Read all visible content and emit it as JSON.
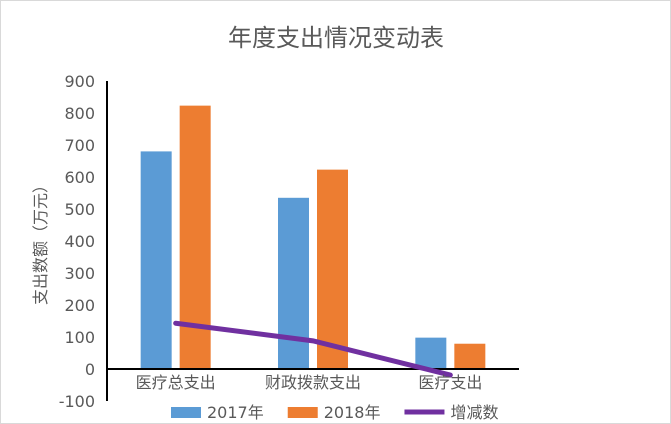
{
  "chart_data": {
    "type": "bar",
    "title": "年度支出情况变动表",
    "xlabel": "",
    "ylabel": "支出数额（万元）",
    "ylim": [
      -100,
      900
    ],
    "yticks": [
      900,
      800,
      700,
      600,
      500,
      400,
      300,
      200,
      100,
      0,
      -100
    ],
    "categories": [
      "医疗总支出",
      "财政拨款支出",
      "医疗支出"
    ],
    "grid": false,
    "legend_position": "bottom",
    "series": [
      {
        "name": "2017年",
        "kind": "bar",
        "color": "#5b9bd5",
        "values": [
          680,
          535,
          98
        ]
      },
      {
        "name": "2018年",
        "kind": "bar",
        "color": "#ed7d31",
        "values": [
          823,
          623,
          79
        ]
      },
      {
        "name": "增减数",
        "kind": "line",
        "color": "#7030a0",
        "values": [
          143,
          88,
          -19
        ]
      }
    ]
  }
}
